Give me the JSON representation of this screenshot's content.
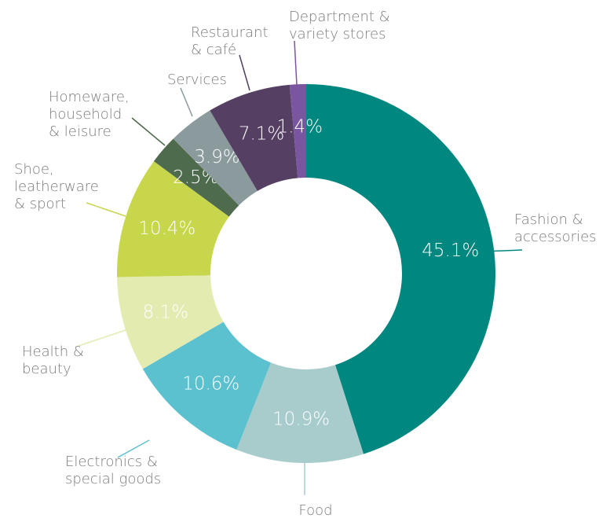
{
  "chart_data": {
    "type": "donut",
    "categories": [
      "Fashion &\naccessories",
      "Food",
      "Electronics &\nspecial goods",
      "Health &\nbeauty",
      "Shoe,\nleatherware\n& sport",
      "Homeware,\nhousehold\n& leisure",
      "Services",
      "Restaurant\n& café",
      "Department &\nvariety stores"
    ],
    "values": [
      45.1,
      10.9,
      10.6,
      8.1,
      10.4,
      2.5,
      3.9,
      7.1,
      1.4
    ],
    "value_labels": [
      "45.1%",
      "10.9%",
      "10.6%",
      "8.1%",
      "10.4%",
      "2.5%",
      "3.9%",
      "7.1%",
      "1.4%"
    ],
    "colors": [
      "#00877f",
      "#a8cccb",
      "#5bc1cf",
      "#e3ebb0",
      "#c8d64b",
      "#4e6b4d",
      "#8a9a9d",
      "#553f63",
      "#7a55a0"
    ]
  }
}
